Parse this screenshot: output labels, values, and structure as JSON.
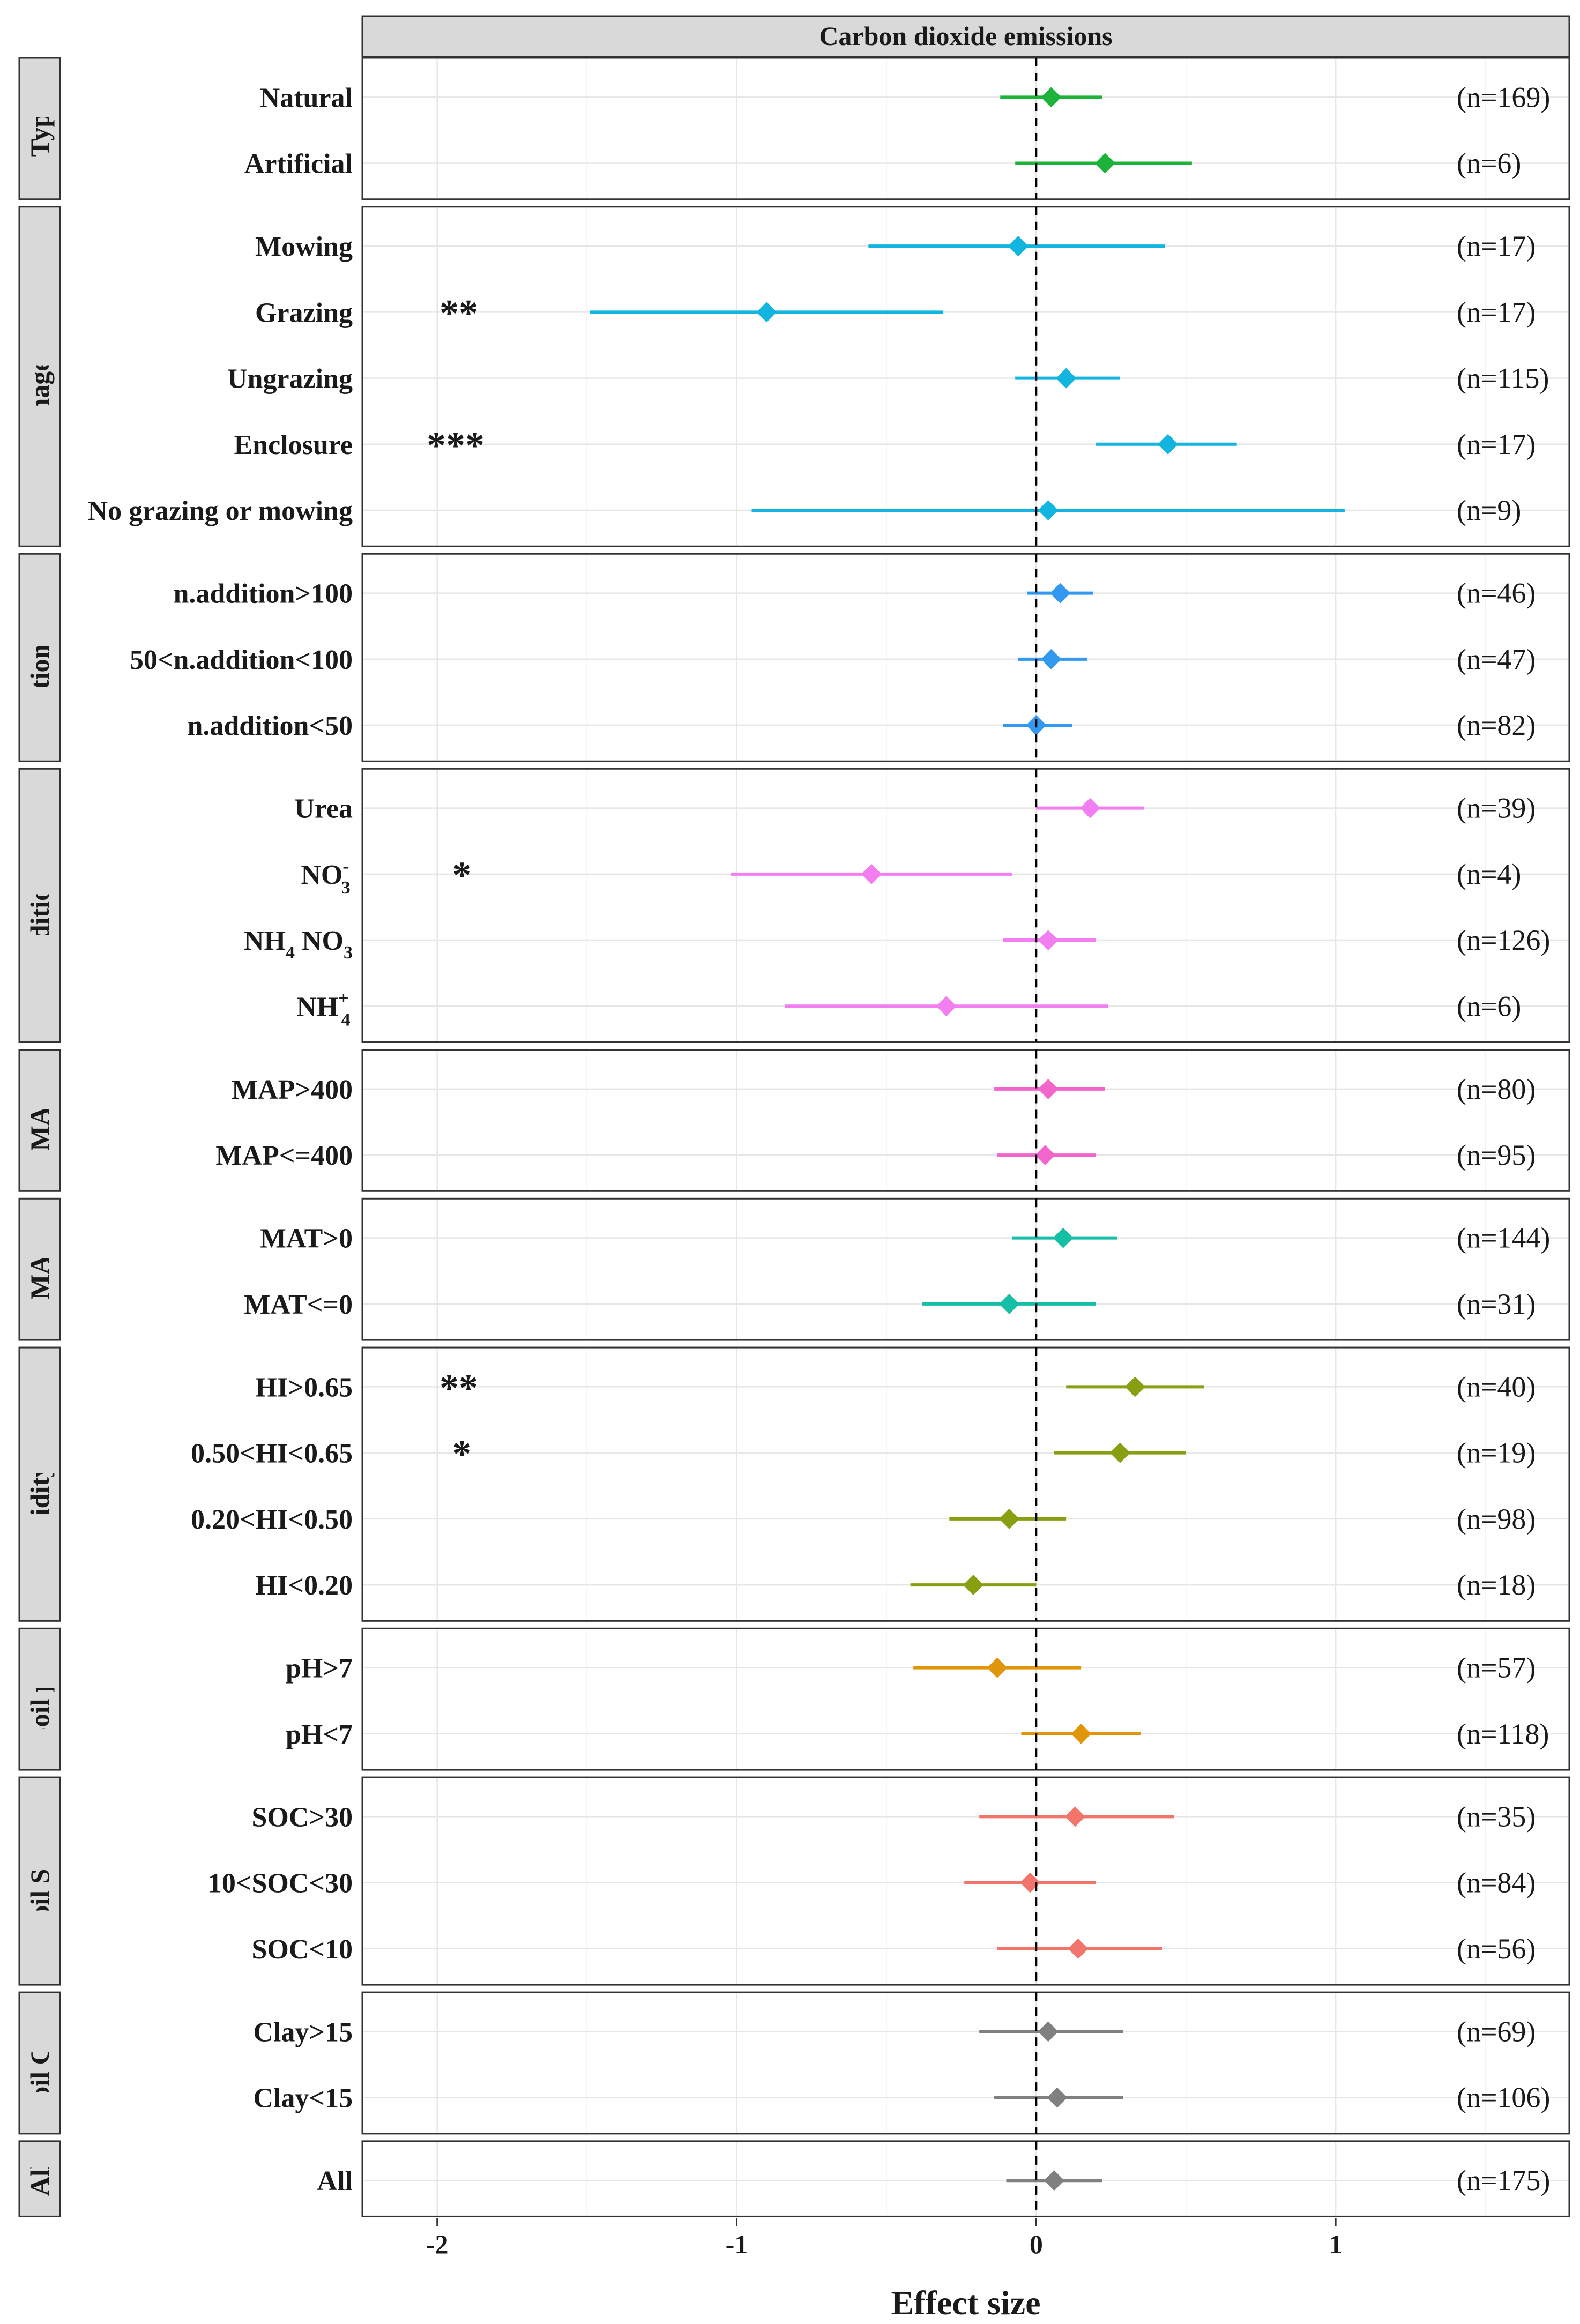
{
  "chart_data": {
    "type": "forest",
    "title": "Carbon dioxide emissions",
    "xlabel": "Effect size",
    "xlim": [
      -2.25,
      1.78
    ],
    "xticks": [
      -2,
      -1,
      0,
      1
    ],
    "xtick_labels": [
      "-2",
      "-1",
      "0",
      "1"
    ],
    "reference_line": 0,
    "groups": [
      {
        "name": "Type",
        "color": "#1db33a",
        "rows": [
          {
            "label": "Natural",
            "est": 0.05,
            "lo": -0.12,
            "hi": 0.22,
            "n": "(n=169)",
            "sig": ""
          },
          {
            "label": "Artificial",
            "est": 0.23,
            "lo": -0.07,
            "hi": 0.52,
            "n": "(n=6)",
            "sig": ""
          }
        ]
      },
      {
        "name": "Management",
        "color": "#12b4e0",
        "rows": [
          {
            "label": "Mowing",
            "est": -0.06,
            "lo": -0.56,
            "hi": 0.43,
            "n": "(n=17)",
            "sig": ""
          },
          {
            "label": "Grazing",
            "est": -0.9,
            "lo": -1.49,
            "hi": -0.31,
            "n": "(n=17)",
            "sig": "**"
          },
          {
            "label": "Ungrazing",
            "est": 0.1,
            "lo": -0.07,
            "hi": 0.28,
            "n": "(n=115)",
            "sig": ""
          },
          {
            "label": "Enclosure",
            "est": 0.44,
            "lo": 0.2,
            "hi": 0.67,
            "n": "(n=17)",
            "sig": "***"
          },
          {
            "label": "No grazing or mowing",
            "est": 0.04,
            "lo": -0.95,
            "hi": 1.03,
            "n": "(n=9)",
            "sig": ""
          }
        ]
      },
      {
        "name": "N addition amount",
        "color": "#3399f0",
        "rows": [
          {
            "label": "n.addition>100",
            "est": 0.08,
            "lo": -0.03,
            "hi": 0.19,
            "n": "(n=46)",
            "sig": ""
          },
          {
            "label": "50<n.addition<100",
            "est": 0.05,
            "lo": -0.06,
            "hi": 0.17,
            "n": "(n=47)",
            "sig": ""
          },
          {
            "label": "n.addition<50",
            "est": 0.0,
            "lo": -0.11,
            "hi": 0.12,
            "n": "(n=82)",
            "sig": ""
          }
        ]
      },
      {
        "name": "N addition type",
        "color": "#f27ef2",
        "rows": [
          {
            "label": "Urea",
            "est": 0.18,
            "lo": 0.0,
            "hi": 0.36,
            "n": "(n=39)",
            "sig": "",
            "base": "Urea",
            "sup": "",
            "sub": "",
            "rest": ""
          },
          {
            "label": "NO3-",
            "est": -0.55,
            "lo": -1.02,
            "hi": -0.08,
            "n": "(n=4)",
            "sig": "*",
            "base": "NO",
            "sup": "-",
            "sub": "3",
            "rest": ""
          },
          {
            "label": "NH4 NO3",
            "est": 0.04,
            "lo": -0.11,
            "hi": 0.2,
            "n": "(n=126)",
            "sig": "",
            "base": "NH",
            "sup": "",
            "sub": "4",
            "rest": " NO3"
          },
          {
            "label": "NH4+",
            "est": -0.3,
            "lo": -0.84,
            "hi": 0.24,
            "n": "(n=6)",
            "sig": "",
            "base": "NH",
            "sup": "+",
            "sub": "4",
            "rest": ""
          }
        ]
      },
      {
        "name": "MAP",
        "color": "#f266cc",
        "rows": [
          {
            "label": "MAP>400",
            "est": 0.04,
            "lo": -0.14,
            "hi": 0.23,
            "n": "(n=80)",
            "sig": ""
          },
          {
            "label": "MAP<=400",
            "est": 0.03,
            "lo": -0.13,
            "hi": 0.2,
            "n": "(n=95)",
            "sig": ""
          }
        ]
      },
      {
        "name": "MAT",
        "color": "#14bfa5",
        "rows": [
          {
            "label": "MAT>0",
            "est": 0.09,
            "lo": -0.08,
            "hi": 0.27,
            "n": "(n=144)",
            "sig": ""
          },
          {
            "label": "MAT<=0",
            "est": -0.09,
            "lo": -0.38,
            "hi": 0.2,
            "n": "(n=31)",
            "sig": ""
          }
        ]
      },
      {
        "name": "Humidity index",
        "color": "#8a9e12",
        "rows": [
          {
            "label": "HI>0.65",
            "est": 0.33,
            "lo": 0.1,
            "hi": 0.56,
            "n": "(n=40)",
            "sig": "**"
          },
          {
            "label": "0.50<HI<0.65",
            "est": 0.28,
            "lo": 0.06,
            "hi": 0.5,
            "n": "(n=19)",
            "sig": "*"
          },
          {
            "label": "0.20<HI<0.50",
            "est": -0.09,
            "lo": -0.29,
            "hi": 0.1,
            "n": "(n=98)",
            "sig": ""
          },
          {
            "label": "HI<0.20",
            "est": -0.21,
            "lo": -0.42,
            "hi": 0.0,
            "n": "(n=18)",
            "sig": ""
          }
        ]
      },
      {
        "name": "Soil pH",
        "color": "#e0960a",
        "rows": [
          {
            "label": "pH>7",
            "est": -0.13,
            "lo": -0.41,
            "hi": 0.15,
            "n": "(n=57)",
            "sig": ""
          },
          {
            "label": "pH<7",
            "est": 0.15,
            "lo": -0.05,
            "hi": 0.35,
            "n": "(n=118)",
            "sig": ""
          }
        ]
      },
      {
        "name": "Soil SOC",
        "color": "#f2756c",
        "rows": [
          {
            "label": "SOC>30",
            "est": 0.13,
            "lo": -0.19,
            "hi": 0.46,
            "n": "(n=35)",
            "sig": ""
          },
          {
            "label": "10<SOC<30",
            "est": -0.02,
            "lo": -0.24,
            "hi": 0.2,
            "n": "(n=84)",
            "sig": ""
          },
          {
            "label": "SOC<10",
            "est": 0.14,
            "lo": -0.13,
            "hi": 0.42,
            "n": "(n=56)",
            "sig": ""
          }
        ]
      },
      {
        "name": "Soil Clay",
        "color": "#808080",
        "rows": [
          {
            "label": "Clay>15",
            "est": 0.04,
            "lo": -0.19,
            "hi": 0.29,
            "n": "(n=69)",
            "sig": ""
          },
          {
            "label": "Clay<15",
            "est": 0.07,
            "lo": -0.14,
            "hi": 0.29,
            "n": "(n=106)",
            "sig": ""
          }
        ]
      },
      {
        "name": "All",
        "color": "#808080",
        "rows": [
          {
            "label": "All",
            "est": 0.06,
            "lo": -0.1,
            "hi": 0.22,
            "n": "(n=175)",
            "sig": ""
          }
        ]
      }
    ]
  }
}
